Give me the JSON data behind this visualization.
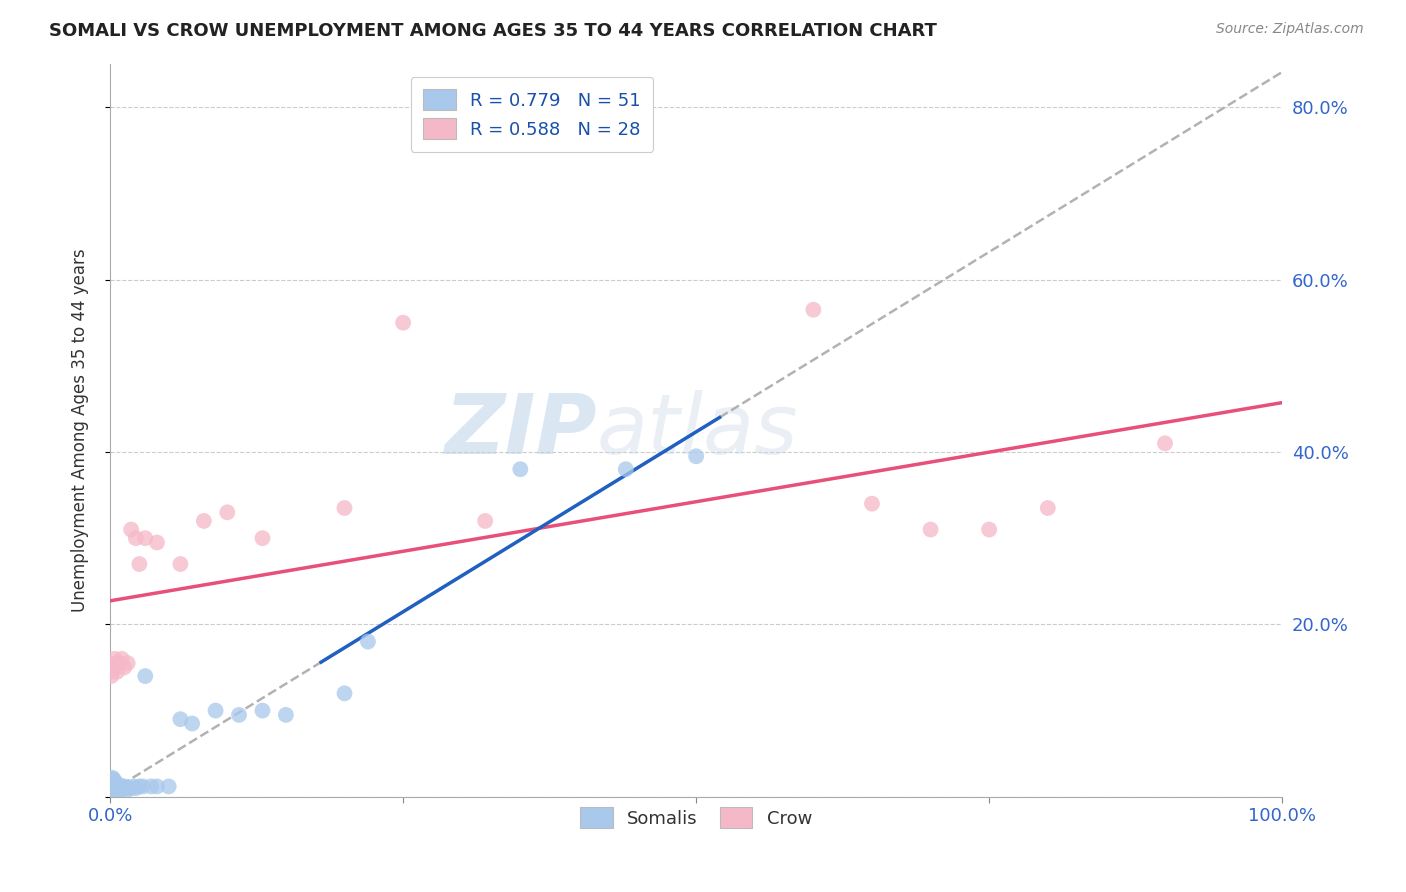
{
  "title": "SOMALI VS CROW UNEMPLOYMENT AMONG AGES 35 TO 44 YEARS CORRELATION CHART",
  "source": "Source: ZipAtlas.com",
  "ylabel": "Unemployment Among Ages 35 to 44 years",
  "xlim": [
    0.0,
    1.0
  ],
  "ylim": [
    0.0,
    0.85
  ],
  "x_ticks": [
    0.0,
    0.25,
    0.5,
    0.75,
    1.0
  ],
  "x_tick_labels": [
    "0.0%",
    "",
    "",
    "",
    "100.0%"
  ],
  "y_ticks": [
    0.0,
    0.2,
    0.4,
    0.6,
    0.8
  ],
  "y_tick_labels_right": [
    "",
    "20.0%",
    "40.0%",
    "60.0%",
    "80.0%"
  ],
  "somali_color": "#a8c8ec",
  "crow_color": "#f5b8c8",
  "somali_line_color": "#2060c0",
  "crow_line_color": "#e8507a",
  "dashed_line_color": "#aaaaaa",
  "somali_R": 0.779,
  "somali_N": 51,
  "crow_R": 0.588,
  "crow_N": 28,
  "background_color": "#ffffff",
  "grid_color": "#cccccc",
  "somali_x": [
    0.001,
    0.001,
    0.001,
    0.002,
    0.002,
    0.002,
    0.002,
    0.003,
    0.003,
    0.003,
    0.003,
    0.004,
    0.004,
    0.004,
    0.005,
    0.005,
    0.005,
    0.006,
    0.006,
    0.006,
    0.007,
    0.007,
    0.008,
    0.008,
    0.009,
    0.01,
    0.01,
    0.011,
    0.012,
    0.014,
    0.015,
    0.017,
    0.02,
    0.022,
    0.025,
    0.028,
    0.03,
    0.035,
    0.04,
    0.05,
    0.06,
    0.07,
    0.09,
    0.11,
    0.13,
    0.15,
    0.2,
    0.22,
    0.35,
    0.44,
    0.5
  ],
  "somali_y": [
    0.01,
    0.015,
    0.02,
    0.008,
    0.012,
    0.018,
    0.022,
    0.005,
    0.01,
    0.015,
    0.02,
    0.008,
    0.012,
    0.018,
    0.005,
    0.01,
    0.015,
    0.005,
    0.01,
    0.015,
    0.005,
    0.01,
    0.008,
    0.012,
    0.008,
    0.01,
    0.012,
    0.01,
    0.012,
    0.01,
    0.008,
    0.01,
    0.012,
    0.01,
    0.012,
    0.012,
    0.14,
    0.012,
    0.012,
    0.012,
    0.09,
    0.085,
    0.1,
    0.095,
    0.1,
    0.095,
    0.12,
    0.18,
    0.38,
    0.38,
    0.395
  ],
  "crow_x": [
    0.001,
    0.002,
    0.003,
    0.004,
    0.005,
    0.006,
    0.008,
    0.01,
    0.012,
    0.015,
    0.018,
    0.022,
    0.025,
    0.03,
    0.04,
    0.06,
    0.08,
    0.1,
    0.13,
    0.2,
    0.25,
    0.32,
    0.6,
    0.65,
    0.7,
    0.75,
    0.8,
    0.9
  ],
  "crow_y": [
    0.14,
    0.145,
    0.15,
    0.16,
    0.155,
    0.145,
    0.155,
    0.16,
    0.15,
    0.155,
    0.31,
    0.3,
    0.27,
    0.3,
    0.295,
    0.27,
    0.32,
    0.33,
    0.3,
    0.335,
    0.55,
    0.32,
    0.565,
    0.34,
    0.31,
    0.31,
    0.335,
    0.41
  ]
}
